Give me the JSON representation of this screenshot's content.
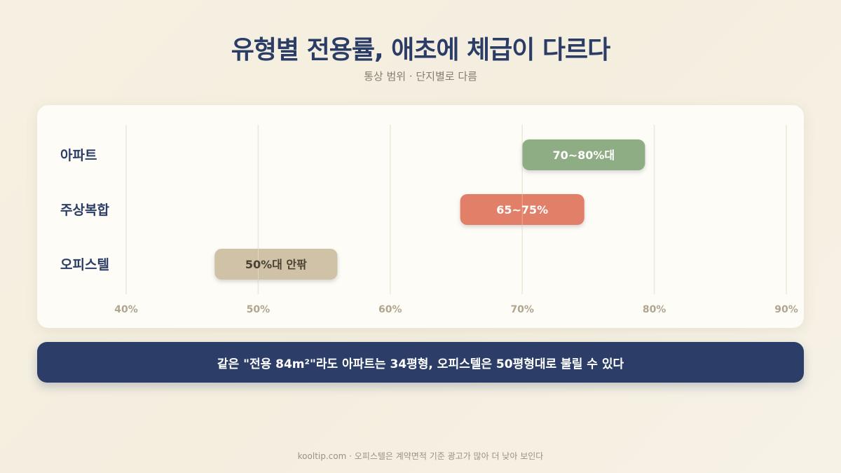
{
  "header": {
    "title": "유형별 전용률, 애초에 체급이 다르다",
    "subtitle": "통상 범위 · 단지별로 다름"
  },
  "chart_data": {
    "type": "range-bar",
    "orientation": "horizontal",
    "xlim": [
      40,
      90
    ],
    "x_ticks": [
      40,
      50,
      60,
      70,
      80,
      90
    ],
    "x_tick_labels": [
      "40%",
      "50%",
      "60%",
      "70%",
      "80%",
      "90%"
    ],
    "grid": true,
    "categories": [
      "아파트",
      "주상복합",
      "오피스텔"
    ],
    "ranges": [
      {
        "category": "아파트",
        "start": 70,
        "end": 79.3,
        "label": "70~80%대",
        "color": "#8fad84",
        "label_color": "#ffffff"
      },
      {
        "category": "주상복합",
        "start": 65.3,
        "end": 74.7,
        "label": "65~75%",
        "color": "#e27f68",
        "label_color": "#ffffff"
      },
      {
        "category": "오피스텔",
        "start": 46.7,
        "end": 56,
        "label": "50%대 안팎",
        "color": "#cfc2a6",
        "label_color": "#4a4334"
      }
    ]
  },
  "callout": {
    "text": "같은 \"전용 84m²\"라도 아파트는 34평형, 오피스텔은 50평형대로 불릴 수 있다"
  },
  "footer": {
    "text": "kooltip.com · 오피스텔은 계약면적 기준 광고가 많아 더 낮아 보인다"
  }
}
